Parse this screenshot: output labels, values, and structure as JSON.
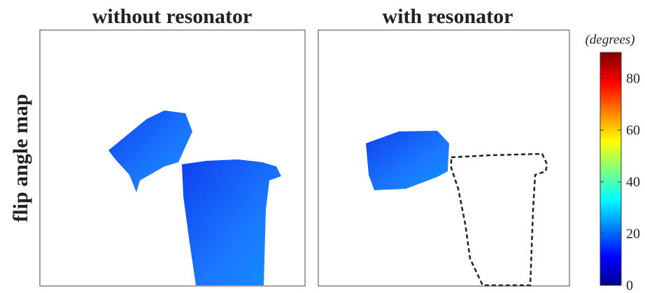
{
  "chart_data": {
    "type": "image-map",
    "panels": [
      {
        "title": "without resonator"
      },
      {
        "title": "with resonator"
      }
    ],
    "ylabel": "flip angle map",
    "colorbar": {
      "label": "(degrees)",
      "lim": [
        0,
        90
      ],
      "ticks": [
        0,
        20,
        40,
        60,
        80
      ]
    }
  }
}
